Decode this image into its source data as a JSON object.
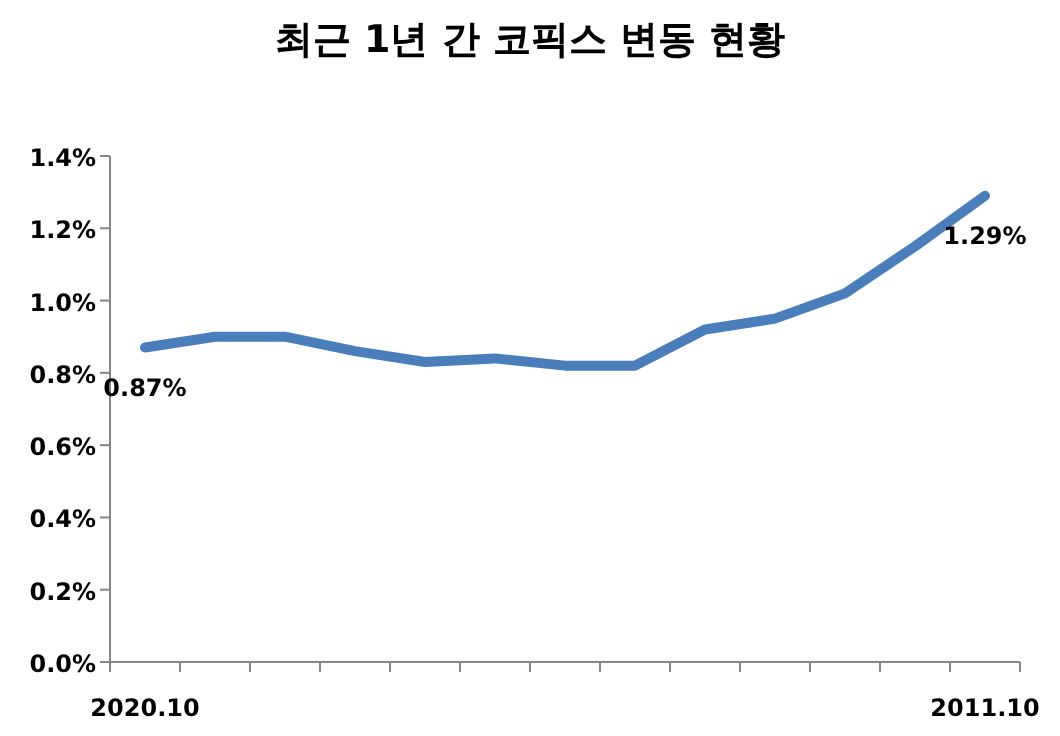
{
  "chart_data": {
    "type": "line",
    "title": "최근 1년 간 코픽스 변동 현황",
    "categories": [
      "2020.10",
      null,
      null,
      null,
      null,
      null,
      null,
      null,
      null,
      null,
      null,
      null,
      "2011.10"
    ],
    "series": [
      {
        "color": "#4a7ebb",
        "values": [
          0.87,
          0.9,
          0.9,
          0.86,
          0.83,
          0.84,
          0.82,
          0.82,
          0.92,
          0.95,
          1.02,
          1.15,
          1.29
        ],
        "value_labels": [
          "0.87%",
          null,
          null,
          null,
          null,
          null,
          null,
          null,
          null,
          null,
          null,
          null,
          "1.29%"
        ]
      }
    ],
    "ylim": [
      0,
      1.4
    ],
    "yticks": [
      {
        "value": 0,
        "label": "0.0%"
      },
      {
        "value": 0.2,
        "label": "0.2%"
      },
      {
        "value": 0.4,
        "label": "0.4%"
      },
      {
        "value": 0.6,
        "label": "0.6%"
      },
      {
        "value": 0.8,
        "label": "0.8%"
      },
      {
        "value": 1.0,
        "label": "1.0%"
      },
      {
        "value": 1.2,
        "label": "1.2%"
      },
      {
        "value": 1.4,
        "label": "1.4%"
      }
    ],
    "grid": false
  }
}
